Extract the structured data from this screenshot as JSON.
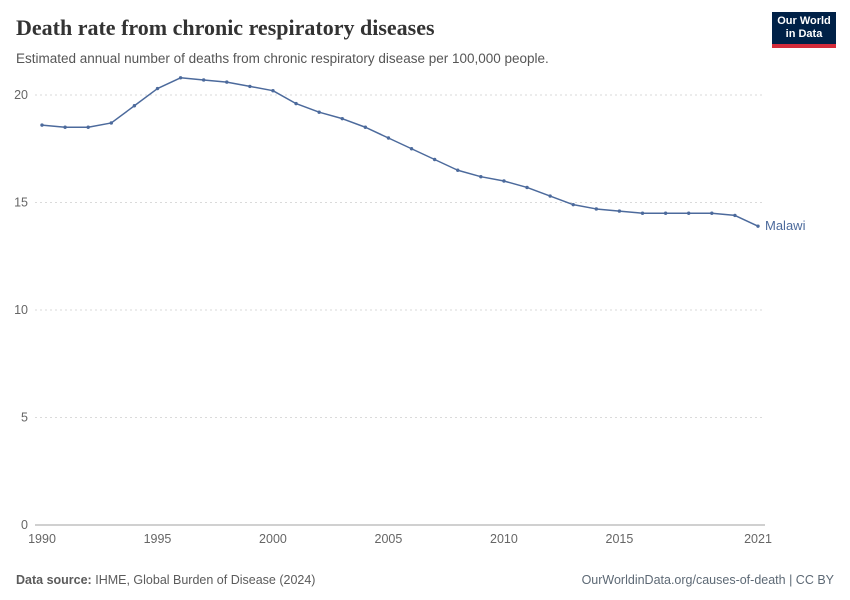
{
  "header": {
    "title": "Death rate from chronic respiratory diseases",
    "subtitle": "Estimated annual number of deaths from chronic respiratory disease per 100,000 people.",
    "logo": {
      "line1": "Our World",
      "line2": "in Data",
      "bg_color": "#002147",
      "accent_color": "#d42b3a"
    }
  },
  "chart_data": {
    "type": "line",
    "title": "Death rate from chronic respiratory diseases",
    "xlabel": "",
    "ylabel": "",
    "xlim": [
      1990,
      2021
    ],
    "ylim": [
      0,
      20
    ],
    "x_ticks": [
      1990,
      1995,
      2000,
      2005,
      2010,
      2015,
      2021
    ],
    "y_ticks": [
      0,
      5,
      10,
      15,
      20
    ],
    "grid": "horizontal-dashed",
    "legend_position": "end-of-line-label",
    "series": [
      {
        "name": "Malawi",
        "color": "#4C6A9C",
        "x": [
          1990,
          1991,
          1992,
          1993,
          1994,
          1995,
          1996,
          1997,
          1998,
          1999,
          2000,
          2001,
          2002,
          2003,
          2004,
          2005,
          2006,
          2007,
          2008,
          2009,
          2010,
          2011,
          2012,
          2013,
          2014,
          2015,
          2016,
          2017,
          2018,
          2019,
          2020,
          2021
        ],
        "values": [
          18.6,
          18.5,
          18.5,
          18.7,
          19.5,
          20.3,
          20.8,
          20.7,
          20.6,
          20.4,
          20.2,
          19.6,
          19.2,
          18.9,
          18.5,
          18.0,
          17.5,
          17.0,
          16.5,
          16.2,
          16.0,
          15.7,
          15.3,
          14.9,
          14.7,
          14.6,
          14.5,
          14.5,
          14.5,
          14.5,
          14.4,
          13.9
        ]
      }
    ]
  },
  "footer": {
    "datasource_label": "Data source:",
    "datasource": "IHME, Global Burden of Disease (2024)",
    "attribution": "OurWorldinData.org/causes-of-death | CC BY"
  }
}
